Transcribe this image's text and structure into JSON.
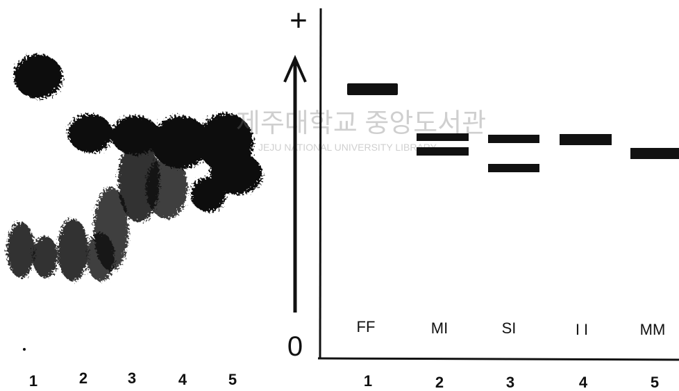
{
  "gel": {
    "lanes": [
      "1",
      "2",
      "3",
      "4",
      "5"
    ]
  },
  "diagram": {
    "axis_top": "+",
    "axis_bottom": "0",
    "genotypes": [
      "FF",
      "MI",
      "SI",
      "I I",
      "MM"
    ],
    "lanes": [
      "1",
      "2",
      "3",
      "4",
      "5"
    ]
  },
  "watermark": {
    "korean": "제주대학교 중앙도서관",
    "english": "JEJU NATIONAL UNIVERSITY LIBRARY"
  }
}
